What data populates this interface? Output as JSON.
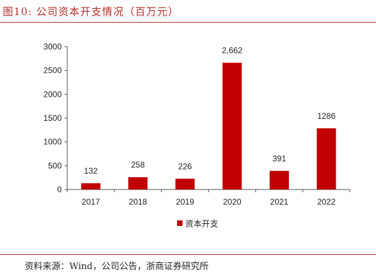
{
  "title": "图10:  公司资本开支情况（百万元）",
  "source": "资料来源：Wind，公司公告，浙商证券研究所",
  "colors": {
    "accent": "#b3322c",
    "bar": "#c00000",
    "axis": "#555555",
    "text": "#222222"
  },
  "chart_data": {
    "type": "bar",
    "categories": [
      "2017",
      "2018",
      "2019",
      "2020",
      "2021",
      "2022"
    ],
    "series": [
      {
        "name": "资本开支",
        "values": [
          132,
          258,
          226,
          2662,
          391,
          1286
        ]
      }
    ],
    "data_labels": [
      "132",
      "258",
      "226",
      "2,662",
      "391",
      "1286"
    ],
    "y_ticks": [
      "0",
      "500",
      "1000",
      "1500",
      "2000",
      "2500",
      "3000"
    ],
    "ylim": [
      0,
      3000
    ],
    "grid": false,
    "legend_position": "bottom"
  }
}
